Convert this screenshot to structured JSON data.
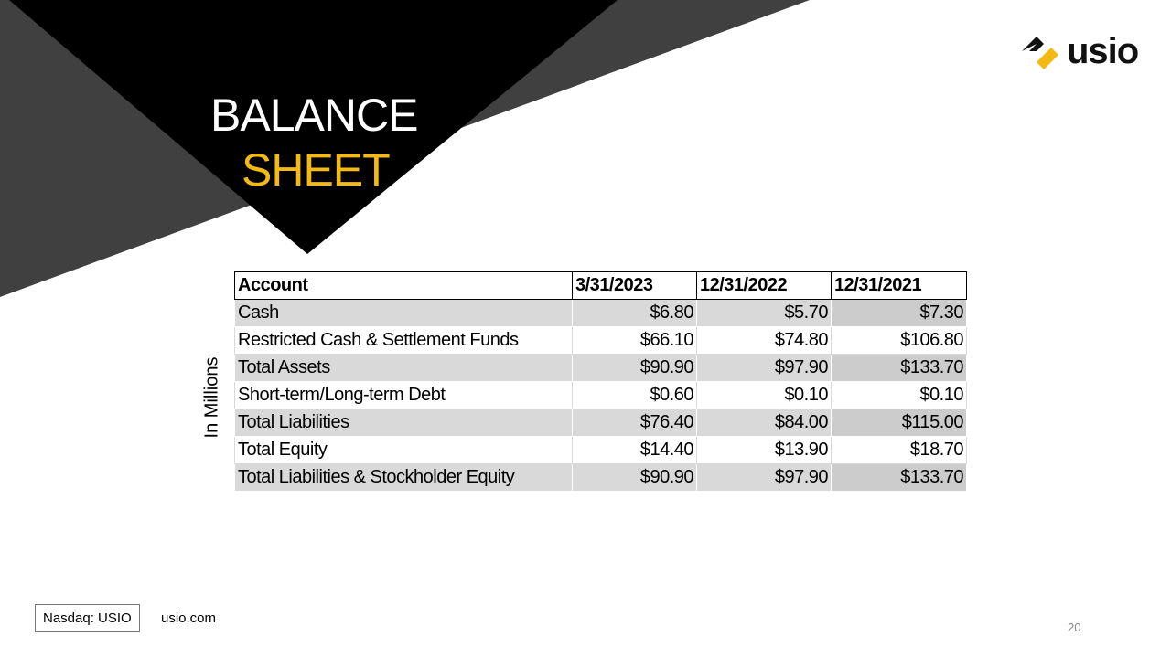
{
  "title": {
    "line1": "BALANCE",
    "line2": "SHEET"
  },
  "logo": "usio",
  "side_label": "In Millions",
  "table": {
    "header": [
      "Account",
      "3/31/2023",
      "12/31/2022",
      "12/31/2021"
    ],
    "rows": [
      [
        "Cash",
        "$6.80",
        "$5.70",
        "$7.30"
      ],
      [
        "Restricted Cash & Settlement Funds",
        "$66.10",
        "$74.80",
        "$106.80"
      ],
      [
        "Total Assets",
        "$90.90",
        "$97.90",
        "$133.70"
      ],
      [
        "Short-term/Long-term Debt",
        "$0.60",
        "$0.10",
        "$0.10"
      ],
      [
        "Total Liabilities",
        "$76.40",
        "$84.00",
        "$115.00"
      ],
      [
        "Total Equity",
        "$14.40",
        "$13.90",
        "$18.70"
      ],
      [
        "Total Liabilities & Stockholder Equity",
        "$90.90",
        "$97.90",
        "$133.70"
      ]
    ]
  },
  "footer": {
    "ticker": "Nasdaq: USIO",
    "site": "usio.com",
    "page": "20"
  }
}
